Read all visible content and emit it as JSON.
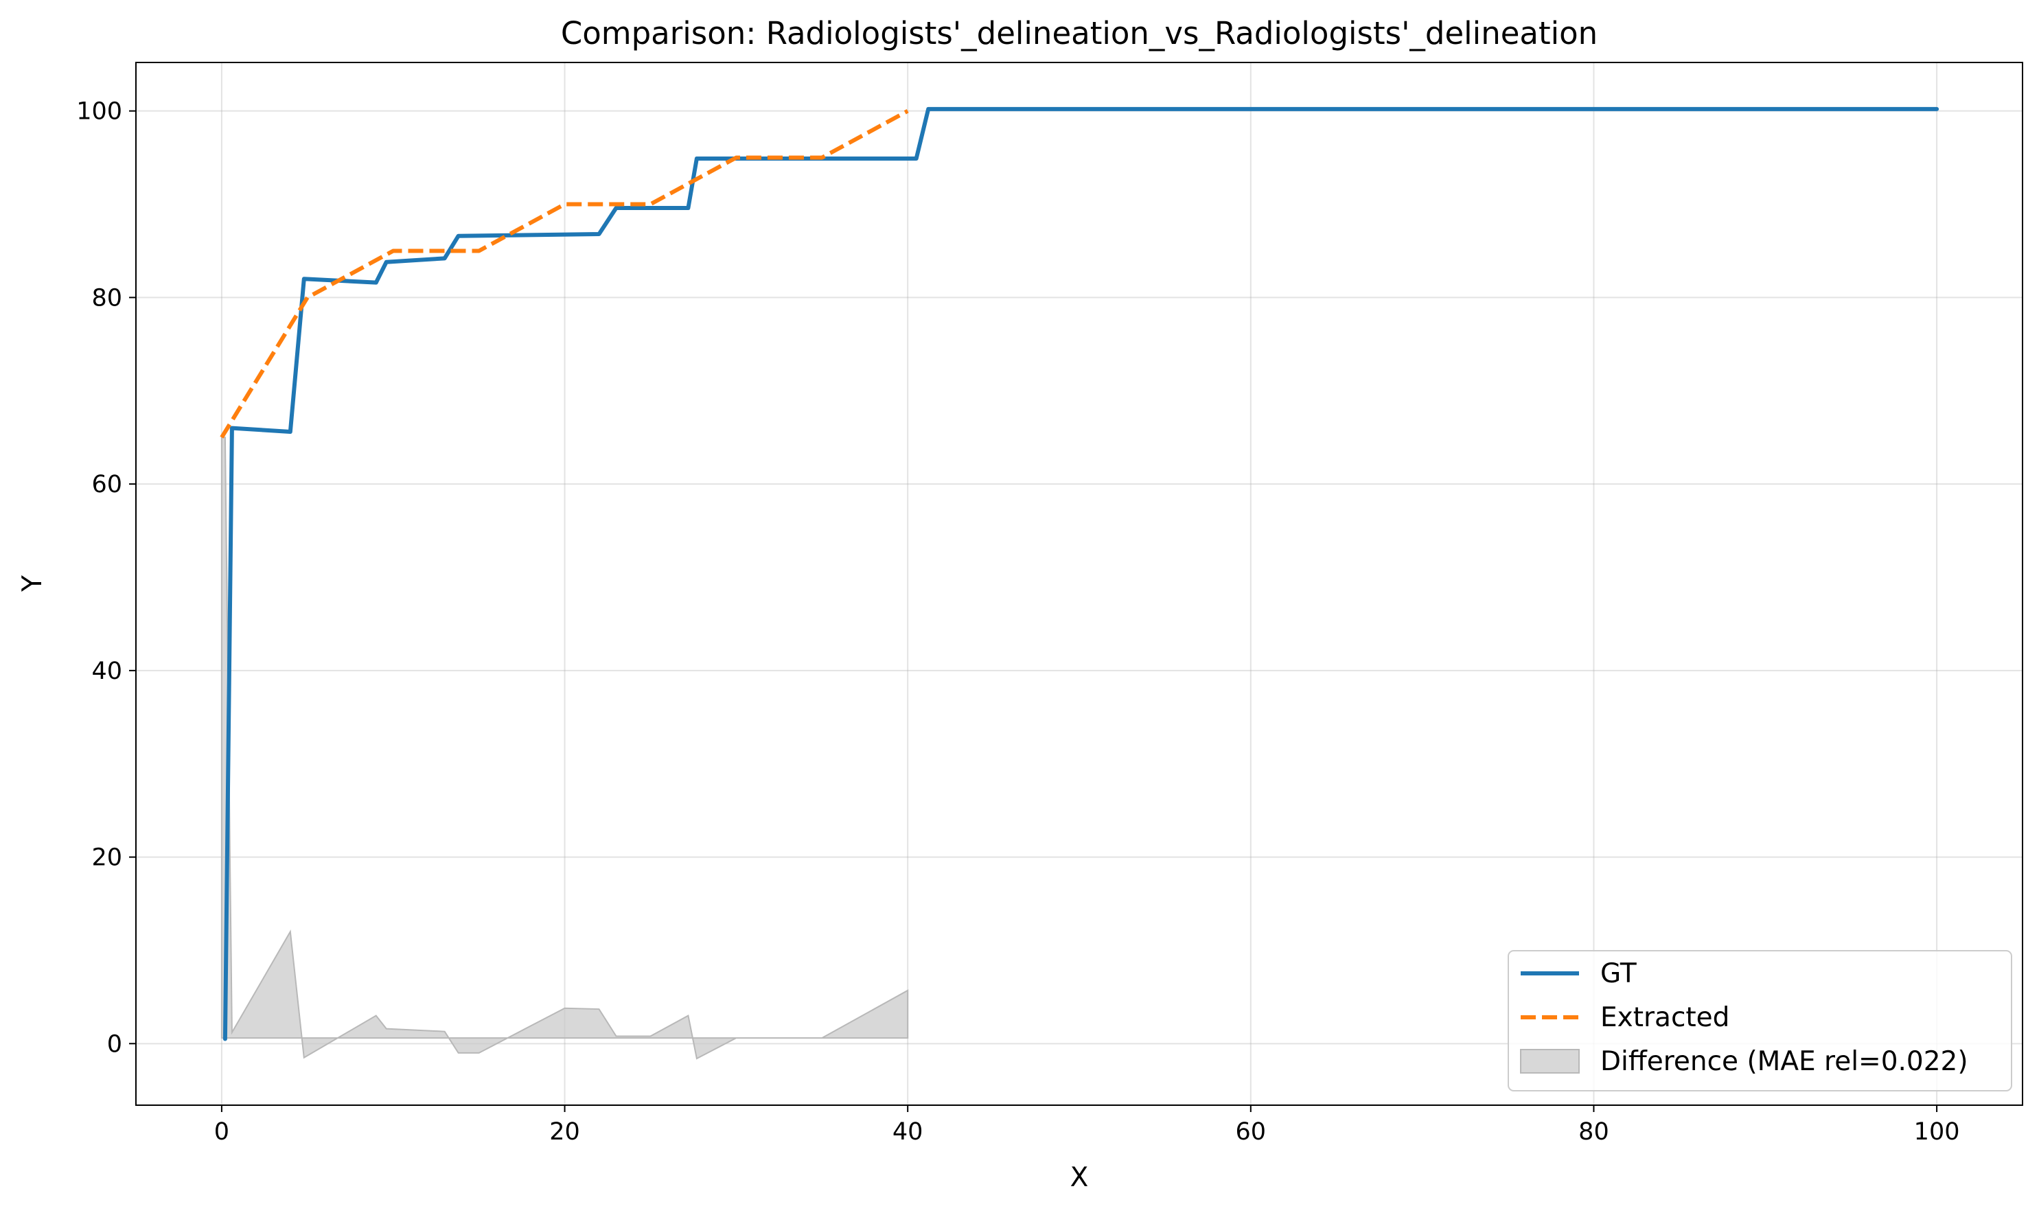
{
  "chart_data": {
    "type": "line",
    "title": "Comparison: Radiologists'_delineation_vs_Radiologists'_delineation",
    "xlabel": "X",
    "ylabel": "Y",
    "xlim": [
      -5,
      105
    ],
    "ylim": [
      -6.6,
      105.2
    ],
    "xticks": [
      0,
      20,
      40,
      60,
      80,
      100
    ],
    "yticks": [
      0,
      20,
      40,
      60,
      80,
      100
    ],
    "grid": true,
    "legend_position": "lower right",
    "series": [
      {
        "name": "GT",
        "style": "solid",
        "color": "#1f77b4",
        "x": [
          0.2,
          0.6,
          4.0,
          4.8,
          9.0,
          9.6,
          13.0,
          13.8,
          22.0,
          23.0,
          27.2,
          27.7,
          40.5,
          41.2,
          100.0
        ],
        "y": [
          0.5,
          66.0,
          65.6,
          82.0,
          81.6,
          83.8,
          84.2,
          86.6,
          86.8,
          89.6,
          89.6,
          94.9,
          94.9,
          100.2,
          100.2
        ]
      },
      {
        "name": "Extracted",
        "style": "dashed",
        "color": "#ff7f0e",
        "x": [
          0.0,
          1.0,
          5.0,
          10.0,
          15.0,
          20.0,
          25.0,
          30.0,
          35.0,
          40.0
        ],
        "y": [
          65.0,
          68.0,
          80.0,
          85.0,
          85.0,
          90.0,
          90.0,
          95.0,
          95.0,
          100.0
        ]
      }
    ],
    "difference": {
      "name": "Difference (MAE rel=0.022)",
      "color": "#c8c8c8",
      "baseline": 0.6,
      "x": [
        0.0,
        0.2,
        0.6,
        4.0,
        4.8,
        9.0,
        9.6,
        13.0,
        13.8,
        15.0,
        20.0,
        22.0,
        23.0,
        25.0,
        27.2,
        27.7,
        30.0,
        35.0,
        40.0
      ],
      "y": [
        65.0,
        65.0,
        1.2,
        12.0,
        -1.5,
        3.0,
        1.6,
        1.3,
        -1.0,
        -1.0,
        3.8,
        3.7,
        0.8,
        0.8,
        3.0,
        -1.6,
        0.6,
        0.6,
        5.7
      ]
    }
  }
}
